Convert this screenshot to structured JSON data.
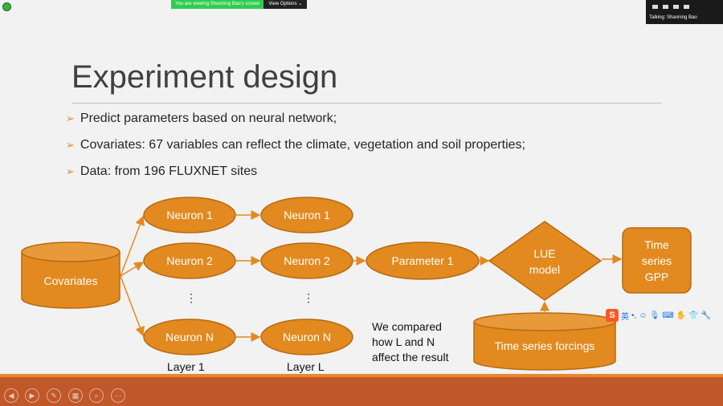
{
  "zoom": {
    "viewing_label": "You are viewing Shanning Bao's screen",
    "view_options_label": "View Options ⌄",
    "talking_label": "Talking: Shanning Bao"
  },
  "slide": {
    "title": "Experiment design",
    "bullets": [
      "Predict parameters based on neural network;",
      "Covariates: 67 variables can reflect the climate, vegetation and soil properties;",
      "Data: from 196 FLUXNET sites"
    ],
    "diagram": {
      "covariates": "Covariates",
      "layer1": [
        "Neuron 1",
        "Neuron 2",
        "Neuron N"
      ],
      "layerL": [
        "Neuron 1",
        "Neuron 2",
        "Neuron N"
      ],
      "ellipsis": "⋮",
      "layer1_label": "Layer 1",
      "layerL_label": "Layer L",
      "parameter": "Parameter 1",
      "lue_line1": "LUE",
      "lue_line2": "model",
      "output_line1": "Time",
      "output_line2": "series",
      "output_line3": "GPP",
      "forcings": "Time series forcings",
      "note_line1": "We compared",
      "note_line2": "how L and N",
      "note_line3": "affect the result"
    },
    "colors": {
      "node_fill": "#e28a1f",
      "node_stroke": "#b86a12",
      "arrow": "#e28a1f"
    }
  },
  "ime": {
    "logo": "S",
    "lang": "英"
  }
}
